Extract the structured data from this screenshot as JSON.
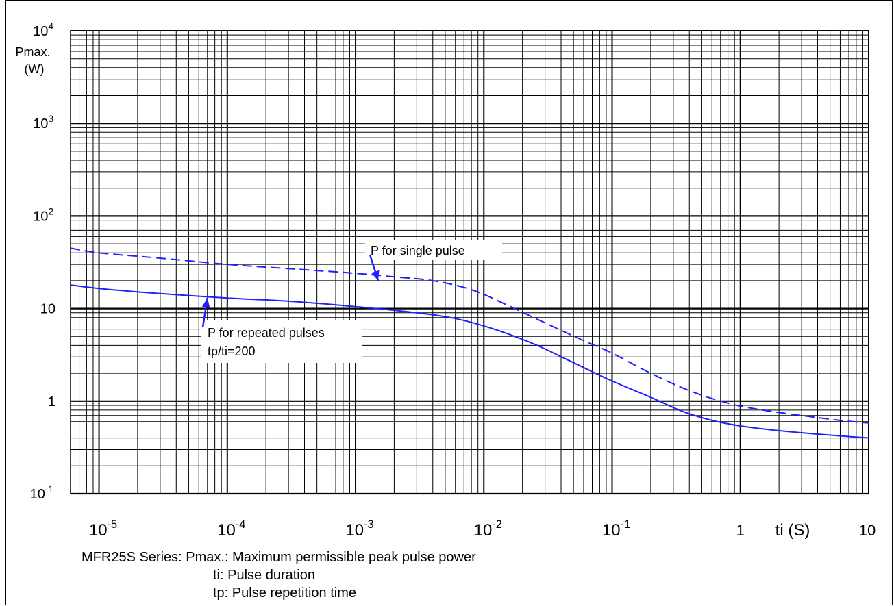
{
  "chart_data": {
    "type": "line",
    "x_scale": "log",
    "y_scale": "log",
    "xlim": [
      6e-06,
      10
    ],
    "ylim": [
      0.1,
      10000
    ],
    "ylabel_line1": "Pmax.",
    "ylabel_line2": "(W)",
    "xlabel": "ti (S)",
    "grid": true,
    "x_tick_labels": [
      {
        "value": 1e-05,
        "base": "10",
        "exp": "-5"
      },
      {
        "value": 0.0001,
        "base": "10",
        "exp": "-4"
      },
      {
        "value": 0.001,
        "base": "10",
        "exp": "-3"
      },
      {
        "value": 0.01,
        "base": "10",
        "exp": "-2"
      },
      {
        "value": 0.1,
        "base": "10",
        "exp": "-1"
      },
      {
        "value": 1,
        "base": "1",
        "exp": ""
      },
      {
        "value": 10,
        "base": "10",
        "exp": ""
      }
    ],
    "y_tick_labels": [
      {
        "value": 10000,
        "base": "10",
        "exp": "4"
      },
      {
        "value": 1000,
        "base": "10",
        "exp": "3"
      },
      {
        "value": 100,
        "base": "10",
        "exp": "2"
      },
      {
        "value": 10,
        "base": "10",
        "exp": ""
      },
      {
        "value": 1,
        "base": "1",
        "exp": ""
      },
      {
        "value": 0.1,
        "base": "10",
        "exp": "-1"
      }
    ],
    "series": [
      {
        "name": "P for single pulse",
        "style": "dashed",
        "color": "#1f1fff",
        "x": [
          6e-06,
          1e-05,
          3e-05,
          0.0001,
          0.0003,
          0.001,
          0.002,
          0.004,
          0.008,
          0.015,
          0.03,
          0.06,
          0.1,
          0.2,
          0.4,
          0.8,
          1.5,
          3,
          6,
          10
        ],
        "y": [
          45,
          40,
          35,
          30,
          27,
          24,
          22,
          20,
          16,
          11,
          7,
          4.5,
          3.3,
          2.0,
          1.3,
          0.95,
          0.8,
          0.7,
          0.62,
          0.58
        ]
      },
      {
        "name": "P for repeated pulses",
        "style": "solid",
        "color": "#1f1fff",
        "x": [
          6e-06,
          1e-05,
          3e-05,
          0.0001,
          0.0003,
          0.001,
          0.003,
          0.006,
          0.012,
          0.025,
          0.05,
          0.1,
          0.2,
          0.35,
          0.6,
          1,
          2,
          4,
          10
        ],
        "y": [
          18,
          16.5,
          14.5,
          13,
          12,
          10.5,
          9,
          7.8,
          6,
          4.1,
          2.6,
          1.65,
          1.1,
          0.78,
          0.62,
          0.54,
          0.48,
          0.44,
          0.4
        ]
      }
    ],
    "annotations": [
      {
        "id": "single",
        "text": "P for single pulse",
        "arrow_to": {
          "x": 0.0015,
          "y": 20
        }
      },
      {
        "id": "repeated",
        "lines": [
          "P for repeated pulses",
          "tp/ti=200"
        ],
        "arrow_to": {
          "x": 7e-05,
          "y": 13
        }
      }
    ]
  },
  "caption": {
    "line1": "MFR25S Series: Pmax.: Maximum permissible peak pulse power",
    "line2": "ti: Pulse duration",
    "line3": "tp: Pulse repetition time"
  },
  "colors": {
    "curve": "#1f1fff",
    "grid": "#000000"
  }
}
